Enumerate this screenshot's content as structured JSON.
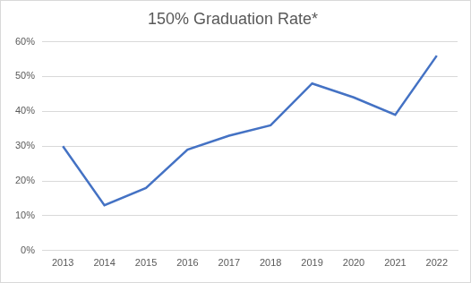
{
  "chart_data": {
    "type": "line",
    "title": "150% Graduation Rate*",
    "categories": [
      "2013",
      "2014",
      "2015",
      "2016",
      "2017",
      "2018",
      "2019",
      "2020",
      "2021",
      "2022"
    ],
    "values": [
      30,
      13,
      18,
      29,
      33,
      36,
      48,
      44,
      39,
      56
    ],
    "color": "#4472c4",
    "ylim": [
      0,
      60
    ],
    "yticks": [
      {
        "value": 0,
        "label": "0%"
      },
      {
        "value": 10,
        "label": "10%"
      },
      {
        "value": 20,
        "label": "20%"
      },
      {
        "value": 30,
        "label": "30%"
      },
      {
        "value": 40,
        "label": "40%"
      },
      {
        "value": 50,
        "label": "50%"
      },
      {
        "value": 60,
        "label": "60%"
      }
    ],
    "grid": true
  }
}
